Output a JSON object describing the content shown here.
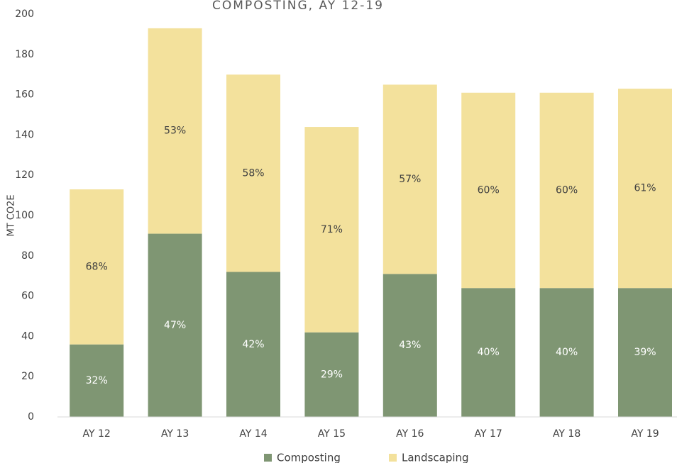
{
  "chart_data": {
    "type": "stacked_bar",
    "title": "COMPOSTING, AY 12-19",
    "y_label": "MT CO2E",
    "categories": [
      "AY 12",
      "AY 13",
      "AY 14",
      "AY 15",
      "AY 16",
      "AY 17",
      "AY 18",
      "AY 19"
    ],
    "series": [
      {
        "name": "Composting",
        "color": "#7f9673",
        "values": [
          36,
          91,
          72,
          42,
          71,
          64,
          64,
          64
        ],
        "value_labels": [
          "32%",
          "47%",
          "42%",
          "29%",
          "43%",
          "40%",
          "40%",
          "39%"
        ]
      },
      {
        "name": "Landscaping",
        "color": "#f3e19c",
        "values": [
          77,
          102,
          98,
          102,
          94,
          97,
          97,
          99
        ],
        "value_labels": [
          "68%",
          "53%",
          "58%",
          "71%",
          "57%",
          "60%",
          "60%",
          "61%"
        ]
      }
    ],
    "ylim": [
      0,
      200
    ],
    "yticks": [
      0,
      20,
      40,
      60,
      80,
      100,
      120,
      140,
      160,
      180,
      200
    ],
    "grid": false,
    "legend": "bottom"
  }
}
